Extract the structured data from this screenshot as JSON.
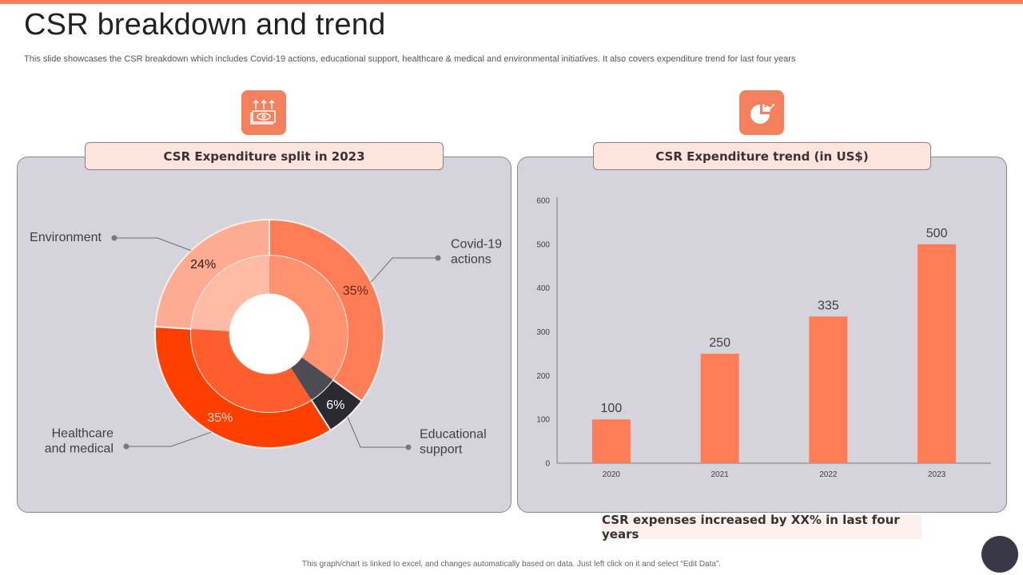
{
  "page": {
    "title": "CSR breakdown and trend",
    "subtitle": "This slide showcases the CSR breakdown which includes Covid-19 actions, educational support, healthcare & medical and environmental initiatives. It also covers expenditure trend for last four years",
    "footer_note": "This graph/chart is linked to excel, and changes automatically based on data. Just left click on it and select “Edit Data”.",
    "accent_color": "#f4805e"
  },
  "left_panel": {
    "icon": "money-up-arrows-icon",
    "header": "CSR Expenditure split in 2023"
  },
  "right_panel": {
    "icon": "pie-chart-dollar-trend-icon",
    "header": "CSR Expenditure trend (in US$)",
    "callout": "CSR expenses increased by XX% in last four years"
  },
  "chart_data": [
    {
      "type": "pie",
      "title": "CSR Expenditure split in 2023",
      "style": "doughnut",
      "categories": [
        "Covid-19 actions",
        "Educational support",
        "Healthcare and medical",
        "Environment"
      ],
      "label_lines": [
        [
          "Covid-19",
          "actions"
        ],
        [
          "Educational",
          "support"
        ],
        [
          "Healthcare",
          "and medical"
        ],
        [
          "Environment"
        ]
      ],
      "values": [
        35,
        6,
        35,
        24
      ],
      "labels": [
        "35%",
        "6%",
        "35%",
        "24%"
      ],
      "colors": [
        "#fe7c56",
        "#2b2a33",
        "#fe3f00",
        "#fdab92"
      ],
      "inner_colors": [
        "#fe916f",
        "#4d4c55",
        "#fe5e2e",
        "#fdbba6"
      ],
      "label_colors": [
        "#5a2a20",
        "#ffffff",
        "#fdd9c4",
        "#3a1a10"
      ]
    },
    {
      "type": "bar",
      "title": "CSR Expenditure trend (in US$)",
      "categories": [
        "2020",
        "2021",
        "2022",
        "2023"
      ],
      "values": [
        100,
        250,
        335,
        500
      ],
      "ylim": [
        0,
        600
      ],
      "yticks": [
        0,
        100,
        200,
        300,
        400,
        500,
        600
      ],
      "xlabel": "",
      "ylabel": "",
      "grid": false,
      "bar_color": "#fe7c56"
    }
  ]
}
